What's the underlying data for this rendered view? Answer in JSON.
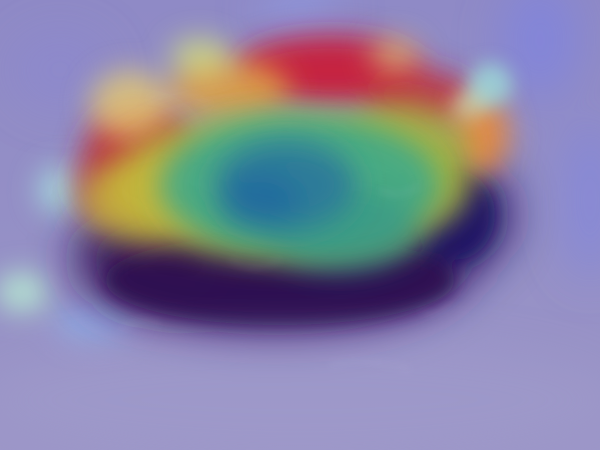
{
  "image": {
    "overlay": "heatmap",
    "colors": {
      "background": "#938fc4",
      "shadow": "#2a1158",
      "hot": "#c8203a",
      "warm": "#e98a3a",
      "yellow": "#b8c03a",
      "green": "#3ea889",
      "core": "#2b7a9a",
      "cool_spot": "#9bd6d8",
      "blue_glow": "#6f78e6"
    }
  }
}
